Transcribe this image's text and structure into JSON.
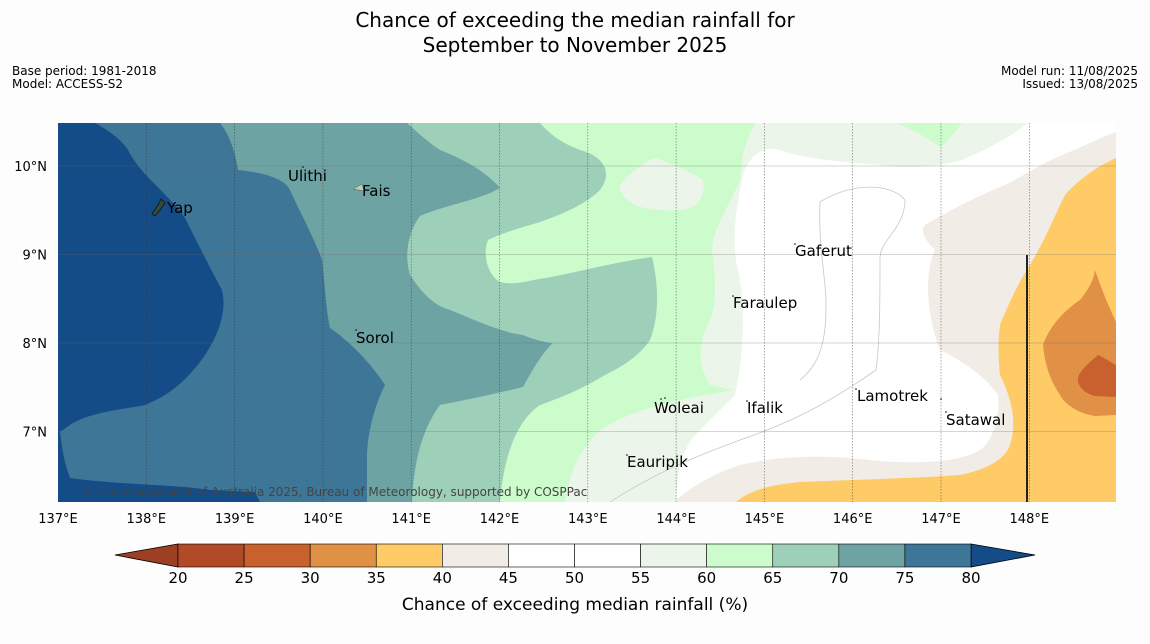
{
  "title_line1": "Chance of exceeding the median rainfall for",
  "title_line2": "September to November 2025",
  "meta_left": [
    "Base period: 1981-2018",
    "Model: ACCESS-S2"
  ],
  "meta_right": [
    "Model run: 11/08/2025",
    "Issued: 13/08/2025"
  ],
  "copyright": "© Commonwealth of Australia 2025, Bureau of Meteorology, supported by COSPPac",
  "lon_ticks": [
    "137°E",
    "138°E",
    "139°E",
    "140°E",
    "141°E",
    "142°E",
    "143°E",
    "144°E",
    "145°E",
    "146°E",
    "147°E",
    "148°E"
  ],
  "lat_ticks": [
    "10°N",
    "9°N",
    "8°N",
    "7°N"
  ],
  "places": [
    "Ulithi",
    "Fais",
    "Yap",
    "Gaferut",
    "Faraulep",
    "Sorol",
    "Lamotrek",
    "Woleai",
    "Ifalik",
    "Satawal",
    "Eauripik"
  ],
  "colorbar": {
    "label": "Chance of exceeding median rainfall (%)",
    "ticks": [
      "20",
      "25",
      "30",
      "35",
      "40",
      "45",
      "50",
      "55",
      "60",
      "65",
      "70",
      "75",
      "80"
    ],
    "colors": [
      "#b04a27",
      "#c9612f",
      "#e09145",
      "#fecb66",
      "#f1ece6",
      "#ffffff",
      "#ffffff",
      "#ecf5ea",
      "#ccfccc",
      "#9ecfb8",
      "#6ea3a4",
      "#3e7697"
    ],
    "low_extend_color": "#9d3f23",
    "high_extend_color": "#144c87"
  }
}
